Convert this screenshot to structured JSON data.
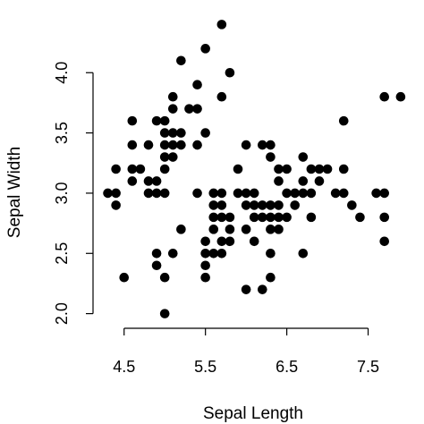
{
  "chart_data": {
    "type": "scatter",
    "title": "",
    "xlabel": "Sepal Length",
    "ylabel": "Sepal Width",
    "xlim": [
      4.25,
      8.0
    ],
    "ylim": [
      1.96,
      4.44
    ],
    "xticks": [
      4.5,
      5.5,
      6.5,
      7.5
    ],
    "xtick_labels": [
      "4.5",
      "5.5",
      "6.5",
      "7.5"
    ],
    "yticks": [
      2.0,
      2.5,
      3.0,
      3.5,
      4.0
    ],
    "ytick_labels": [
      "2.0",
      "2.5",
      "3.0",
      "3.5",
      "4.0"
    ],
    "grid": false,
    "point_color": "#000000",
    "points": [
      [
        4.3,
        3.0
      ],
      [
        4.4,
        2.9
      ],
      [
        4.4,
        3.0
      ],
      [
        4.4,
        3.2
      ],
      [
        4.5,
        2.3
      ],
      [
        4.6,
        3.1
      ],
      [
        4.6,
        3.2
      ],
      [
        4.6,
        3.4
      ],
      [
        4.6,
        3.6
      ],
      [
        4.7,
        3.2
      ],
      [
        4.8,
        3.0
      ],
      [
        4.8,
        3.1
      ],
      [
        4.8,
        3.4
      ],
      [
        4.9,
        2.4
      ],
      [
        4.9,
        2.5
      ],
      [
        4.9,
        3.0
      ],
      [
        4.9,
        3.1
      ],
      [
        4.9,
        3.6
      ],
      [
        5.0,
        2.0
      ],
      [
        5.0,
        2.3
      ],
      [
        5.0,
        3.0
      ],
      [
        5.0,
        3.2
      ],
      [
        5.0,
        3.3
      ],
      [
        5.0,
        3.4
      ],
      [
        5.0,
        3.5
      ],
      [
        5.0,
        3.6
      ],
      [
        5.1,
        2.5
      ],
      [
        5.1,
        3.3
      ],
      [
        5.1,
        3.4
      ],
      [
        5.1,
        3.5
      ],
      [
        5.1,
        3.7
      ],
      [
        5.1,
        3.8
      ],
      [
        5.2,
        2.7
      ],
      [
        5.2,
        3.4
      ],
      [
        5.2,
        3.5
      ],
      [
        5.2,
        4.1
      ],
      [
        5.3,
        3.7
      ],
      [
        5.4,
        3.0
      ],
      [
        5.4,
        3.4
      ],
      [
        5.4,
        3.7
      ],
      [
        5.4,
        3.9
      ],
      [
        5.5,
        2.3
      ],
      [
        5.5,
        2.4
      ],
      [
        5.5,
        2.5
      ],
      [
        5.5,
        2.6
      ],
      [
        5.5,
        3.5
      ],
      [
        5.5,
        4.2
      ],
      [
        5.6,
        2.5
      ],
      [
        5.6,
        2.7
      ],
      [
        5.6,
        2.8
      ],
      [
        5.6,
        2.9
      ],
      [
        5.6,
        3.0
      ],
      [
        5.7,
        2.5
      ],
      [
        5.7,
        2.6
      ],
      [
        5.7,
        2.8
      ],
      [
        5.7,
        2.9
      ],
      [
        5.7,
        3.0
      ],
      [
        5.7,
        3.8
      ],
      [
        5.7,
        4.4
      ],
      [
        5.8,
        2.6
      ],
      [
        5.8,
        2.7
      ],
      [
        5.8,
        2.8
      ],
      [
        5.8,
        4.0
      ],
      [
        5.9,
        3.0
      ],
      [
        5.9,
        3.2
      ],
      [
        6.0,
        2.2
      ],
      [
        6.0,
        2.7
      ],
      [
        6.0,
        2.9
      ],
      [
        6.0,
        3.0
      ],
      [
        6.0,
        3.4
      ],
      [
        6.1,
        2.6
      ],
      [
        6.1,
        2.8
      ],
      [
        6.1,
        2.9
      ],
      [
        6.1,
        3.0
      ],
      [
        6.2,
        2.2
      ],
      [
        6.2,
        2.8
      ],
      [
        6.2,
        2.9
      ],
      [
        6.2,
        3.4
      ],
      [
        6.3,
        2.3
      ],
      [
        6.3,
        2.5
      ],
      [
        6.3,
        2.7
      ],
      [
        6.3,
        2.8
      ],
      [
        6.3,
        2.9
      ],
      [
        6.3,
        3.3
      ],
      [
        6.3,
        3.4
      ],
      [
        6.4,
        2.7
      ],
      [
        6.4,
        2.8
      ],
      [
        6.4,
        2.9
      ],
      [
        6.4,
        3.1
      ],
      [
        6.4,
        3.2
      ],
      [
        6.5,
        2.8
      ],
      [
        6.5,
        3.0
      ],
      [
        6.5,
        3.2
      ],
      [
        6.6,
        2.9
      ],
      [
        6.6,
        3.0
      ],
      [
        6.7,
        2.5
      ],
      [
        6.7,
        3.0
      ],
      [
        6.7,
        3.1
      ],
      [
        6.7,
        3.3
      ],
      [
        6.8,
        2.8
      ],
      [
        6.8,
        3.0
      ],
      [
        6.8,
        3.2
      ],
      [
        6.9,
        3.1
      ],
      [
        6.9,
        3.2
      ],
      [
        7.0,
        3.2
      ],
      [
        7.1,
        3.0
      ],
      [
        7.2,
        3.0
      ],
      [
        7.2,
        3.2
      ],
      [
        7.2,
        3.6
      ],
      [
        7.3,
        2.9
      ],
      [
        7.4,
        2.8
      ],
      [
        7.6,
        3.0
      ],
      [
        7.7,
        2.6
      ],
      [
        7.7,
        2.8
      ],
      [
        7.7,
        3.0
      ],
      [
        7.7,
        3.8
      ],
      [
        7.9,
        3.8
      ]
    ]
  }
}
